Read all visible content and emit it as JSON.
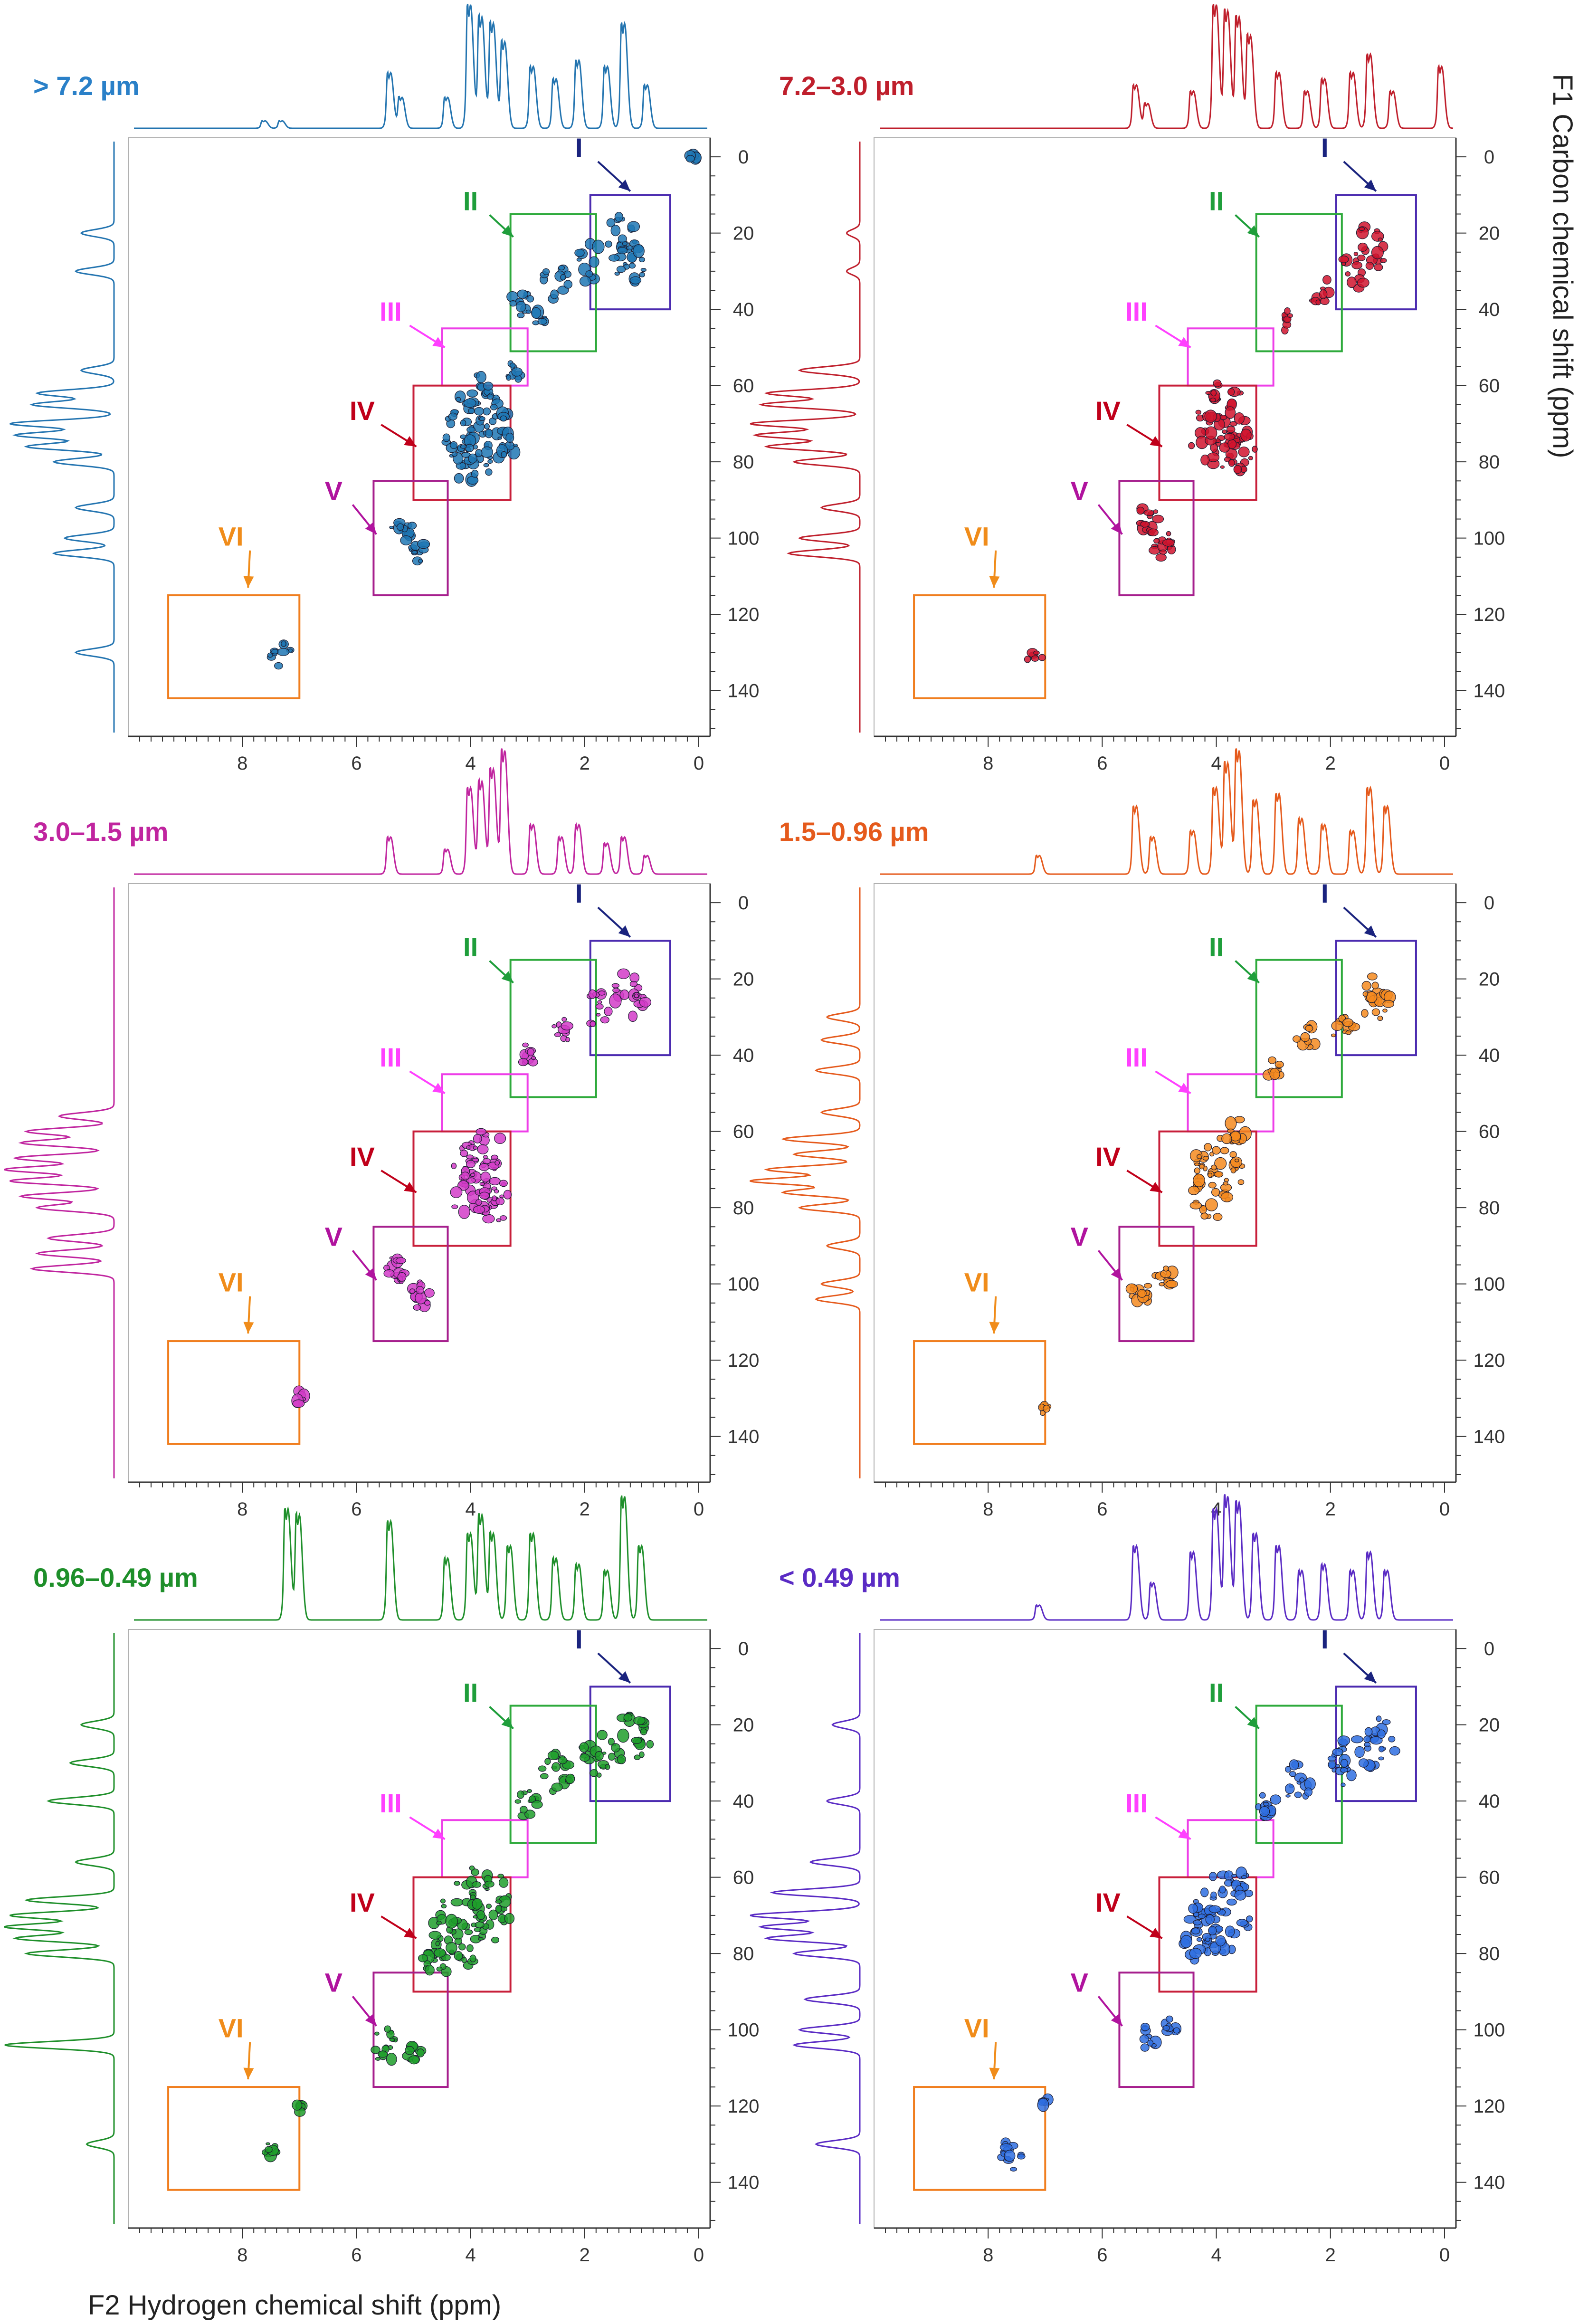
{
  "chart_data": {
    "type": "heatmap",
    "figure_layout": "3 rows x 2 columns of 2D HSQC NMR spectra with 1D projections",
    "xlabel": "F2 Hydrogen chemical shift (ppm)",
    "ylabel": "F1 Carbon chemical shift (ppm)",
    "x_axis": {
      "range": [
        10,
        -0.2
      ],
      "reversed": true,
      "ticks": [
        8,
        6,
        4,
        2,
        0
      ],
      "tick_labels": [
        "8",
        "6",
        "4",
        "2",
        "0"
      ]
    },
    "y_axis": {
      "range": [
        -5,
        152
      ],
      "reversed": true,
      "ticks": [
        0,
        20,
        40,
        60,
        80,
        100,
        120,
        140
      ],
      "tick_labels": [
        "0",
        "20",
        "40",
        "60",
        "80",
        "100",
        "120",
        "140"
      ]
    },
    "regions": [
      {
        "label": "I",
        "color": "#1a237e",
        "box_color": "#4b2bb0",
        "h": [
          0.5,
          1.9
        ],
        "c": [
          10,
          40
        ],
        "label_at": [
          2.1,
          0
        ],
        "arrow_to": [
          1.2,
          9
        ]
      },
      {
        "label": "II",
        "color": "#1f9e3b",
        "box_color": "#2eaa3c",
        "h": [
          1.8,
          3.3
        ],
        "c": [
          15,
          51
        ],
        "label_at": [
          4.0,
          14
        ],
        "arrow_to": [
          3.25,
          21
        ]
      },
      {
        "label": "III",
        "color": "#ff40ff",
        "box_color": "#ee3ee8",
        "h": [
          3.0,
          4.5
        ],
        "c": [
          45,
          60
        ],
        "label_at": [
          5.4,
          43
        ],
        "arrow_to": [
          4.45,
          50
        ]
      },
      {
        "label": "IV",
        "color": "#c0001a",
        "box_color": "#c81f3a",
        "h": [
          3.3,
          5.0
        ],
        "c": [
          60,
          90
        ],
        "label_at": [
          5.9,
          69
        ],
        "arrow_to": [
          4.95,
          76
        ]
      },
      {
        "label": "V",
        "color": "#b0139e",
        "box_color": "#a61f8d",
        "h": [
          4.4,
          5.7
        ],
        "c": [
          85,
          115
        ],
        "label_at": [
          6.4,
          90
        ],
        "arrow_to": [
          5.65,
          99
        ]
      },
      {
        "label": "VI",
        "color": "#f08c1a",
        "box_color": "#f07e1f",
        "h": [
          7.0,
          9.3
        ],
        "c": [
          115,
          142
        ],
        "label_at": [
          8.2,
          102
        ],
        "arrow_to": [
          7.9,
          113
        ]
      }
    ],
    "series": [
      {
        "name": "> 7.2 µm",
        "color": "#1f77b4",
        "projection_color": "#2374b0",
        "h_projection_peaks": [
          [
            7.6,
            0.06
          ],
          [
            7.3,
            0.06
          ],
          [
            5.4,
            0.45
          ],
          [
            5.2,
            0.25
          ],
          [
            4.4,
            0.25
          ],
          [
            4.0,
            1.0
          ],
          [
            3.8,
            0.9
          ],
          [
            3.6,
            0.85
          ],
          [
            3.4,
            0.7
          ],
          [
            2.9,
            0.5
          ],
          [
            2.5,
            0.4
          ],
          [
            2.1,
            0.55
          ],
          [
            1.6,
            0.5
          ],
          [
            1.3,
            0.85
          ],
          [
            0.9,
            0.35
          ]
        ],
        "c_projection_peaks": [
          [
            20,
            0.3
          ],
          [
            30,
            0.35
          ],
          [
            56,
            0.3
          ],
          [
            62,
            0.7
          ],
          [
            65,
            0.75
          ],
          [
            70,
            0.95
          ],
          [
            73,
            0.9
          ],
          [
            76,
            0.8
          ],
          [
            80,
            0.55
          ],
          [
            92,
            0.35
          ],
          [
            100,
            0.45
          ],
          [
            104,
            0.55
          ],
          [
            130,
            0.35
          ]
        ],
        "cross_peaks": [
          [
            1.3,
            22,
            0.34,
            6
          ],
          [
            1.2,
            28,
            0.3,
            6
          ],
          [
            2.0,
            27,
            0.3,
            4
          ],
          [
            2.5,
            33,
            0.24,
            4
          ],
          [
            3.1,
            38,
            0.18,
            4
          ],
          [
            2.8,
            43,
            0.12,
            2
          ],
          [
            3.3,
            57,
            0.15,
            3
          ],
          [
            3.8,
            66,
            0.5,
            10
          ],
          [
            3.9,
            72,
            0.55,
            12
          ],
          [
            3.6,
            75,
            0.4,
            8
          ],
          [
            4.1,
            80,
            0.3,
            6
          ],
          [
            5.2,
            98,
            0.2,
            5
          ],
          [
            4.9,
            104,
            0.15,
            4
          ],
          [
            7.35,
            130,
            0.22,
            4
          ],
          [
            0.1,
            0,
            0.1,
            2
          ]
        ]
      },
      {
        "name": "7.2–3.0 µm",
        "color": "#d0142e",
        "projection_color": "#bf1f2c",
        "h_projection_peaks": [
          [
            5.4,
            0.35
          ],
          [
            5.2,
            0.2
          ],
          [
            4.4,
            0.3
          ],
          [
            4.0,
            1.0
          ],
          [
            3.8,
            0.95
          ],
          [
            3.6,
            0.9
          ],
          [
            3.4,
            0.75
          ],
          [
            2.9,
            0.45
          ],
          [
            2.4,
            0.3
          ],
          [
            2.1,
            0.4
          ],
          [
            1.6,
            0.45
          ],
          [
            1.3,
            0.6
          ],
          [
            0.9,
            0.3
          ],
          [
            0.05,
            0.5
          ]
        ],
        "c_projection_peaks": [
          [
            20,
            0.12
          ],
          [
            30,
            0.12
          ],
          [
            56,
            0.55
          ],
          [
            62,
            0.85
          ],
          [
            65,
            0.9
          ],
          [
            70,
            1.0
          ],
          [
            73,
            0.95
          ],
          [
            76,
            0.85
          ],
          [
            80,
            0.6
          ],
          [
            92,
            0.35
          ],
          [
            100,
            0.55
          ],
          [
            104,
            0.65
          ]
        ],
        "cross_peaks": [
          [
            1.3,
            24,
            0.3,
            6
          ],
          [
            1.6,
            30,
            0.25,
            4
          ],
          [
            2.2,
            35,
            0.2,
            3
          ],
          [
            2.8,
            43,
            0.15,
            3
          ],
          [
            3.9,
            68,
            0.45,
            10
          ],
          [
            4.0,
            74,
            0.45,
            10
          ],
          [
            3.6,
            77,
            0.3,
            6
          ],
          [
            5.2,
            95,
            0.2,
            5
          ],
          [
            4.9,
            102,
            0.2,
            5
          ],
          [
            7.2,
            131,
            0.15,
            2
          ]
        ]
      },
      {
        "name": "3.0–1.5 µm",
        "color": "#d23cc8",
        "projection_color": "#c0259f",
        "h_projection_peaks": [
          [
            5.4,
            0.3
          ],
          [
            4.4,
            0.2
          ],
          [
            4.0,
            0.7
          ],
          [
            3.8,
            0.75
          ],
          [
            3.6,
            0.85
          ],
          [
            3.4,
            1.0
          ],
          [
            2.9,
            0.4
          ],
          [
            2.4,
            0.3
          ],
          [
            2.1,
            0.4
          ],
          [
            1.6,
            0.25
          ],
          [
            1.3,
            0.3
          ],
          [
            0.9,
            0.15
          ]
        ],
        "c_projection_peaks": [
          [
            56,
            0.5
          ],
          [
            60,
            0.8
          ],
          [
            63,
            0.85
          ],
          [
            67,
            0.9
          ],
          [
            70,
            1.0
          ],
          [
            73,
            0.95
          ],
          [
            77,
            0.85
          ],
          [
            80,
            0.7
          ],
          [
            88,
            0.6
          ],
          [
            92,
            0.7
          ],
          [
            96,
            0.75
          ]
        ],
        "cross_peaks": [
          [
            1.2,
            24,
            0.3,
            6
          ],
          [
            1.8,
            28,
            0.25,
            4
          ],
          [
            2.4,
            33,
            0.2,
            3
          ],
          [
            3.0,
            40,
            0.14,
            3
          ],
          [
            3.8,
            68,
            0.45,
            10
          ],
          [
            3.9,
            74,
            0.5,
            12
          ],
          [
            3.6,
            78,
            0.3,
            6
          ],
          [
            5.3,
            96,
            0.2,
            5
          ],
          [
            4.9,
            103,
            0.18,
            4
          ],
          [
            7.0,
            130,
            0.1,
            2
          ]
        ]
      },
      {
        "name": "1.5–0.96 µm",
        "color": "#f58a1f",
        "projection_color": "#e55a1c",
        "h_projection_peaks": [
          [
            7.1,
            0.15
          ],
          [
            5.4,
            0.55
          ],
          [
            5.1,
            0.3
          ],
          [
            4.4,
            0.35
          ],
          [
            4.0,
            0.7
          ],
          [
            3.8,
            0.9
          ],
          [
            3.6,
            1.0
          ],
          [
            3.3,
            0.6
          ],
          [
            2.9,
            0.65
          ],
          [
            2.5,
            0.45
          ],
          [
            2.1,
            0.4
          ],
          [
            1.6,
            0.35
          ],
          [
            1.3,
            0.7
          ],
          [
            1.0,
            0.55
          ]
        ],
        "c_projection_peaks": [
          [
            30,
            0.3
          ],
          [
            36,
            0.35
          ],
          [
            44,
            0.4
          ],
          [
            55,
            0.35
          ],
          [
            62,
            0.7
          ],
          [
            66,
            0.6
          ],
          [
            70,
            0.85
          ],
          [
            73,
            1.0
          ],
          [
            76,
            0.7
          ],
          [
            80,
            0.55
          ],
          [
            90,
            0.3
          ],
          [
            100,
            0.35
          ],
          [
            104,
            0.4
          ]
        ],
        "cross_peaks": [
          [
            1.2,
            25,
            0.3,
            6
          ],
          [
            1.8,
            32,
            0.22,
            4
          ],
          [
            2.4,
            35,
            0.2,
            3
          ],
          [
            3.0,
            44,
            0.14,
            3
          ],
          [
            3.6,
            60,
            0.2,
            4
          ],
          [
            3.9,
            70,
            0.5,
            12
          ],
          [
            4.1,
            77,
            0.35,
            6
          ],
          [
            5.3,
            102,
            0.2,
            4
          ],
          [
            4.9,
            98,
            0.16,
            3
          ],
          [
            7.0,
            133,
            0.08,
            2
          ]
        ]
      },
      {
        "name": "0.96–0.49 µm",
        "color": "#1f9e2a",
        "projection_color": "#1e8f2a",
        "h_projection_peaks": [
          [
            7.2,
            0.9
          ],
          [
            7.0,
            0.85
          ],
          [
            5.4,
            0.8
          ],
          [
            4.4,
            0.5
          ],
          [
            4.0,
            0.7
          ],
          [
            3.8,
            0.85
          ],
          [
            3.6,
            0.7
          ],
          [
            3.3,
            0.6
          ],
          [
            2.9,
            0.7
          ],
          [
            2.5,
            0.5
          ],
          [
            2.1,
            0.45
          ],
          [
            1.6,
            0.4
          ],
          [
            1.3,
            1.0
          ],
          [
            1.0,
            0.6
          ]
        ],
        "c_projection_peaks": [
          [
            20,
            0.3
          ],
          [
            30,
            0.4
          ],
          [
            40,
            0.6
          ],
          [
            56,
            0.35
          ],
          [
            66,
            0.8
          ],
          [
            70,
            0.95
          ],
          [
            73,
            1.0
          ],
          [
            76,
            0.9
          ],
          [
            80,
            0.8
          ],
          [
            104,
            1.0
          ],
          [
            130,
            0.25
          ]
        ],
        "cross_peaks": [
          [
            1.2,
            24,
            0.35,
            8
          ],
          [
            1.8,
            28,
            0.3,
            6
          ],
          [
            2.5,
            33,
            0.28,
            6
          ],
          [
            3.0,
            41,
            0.2,
            4
          ],
          [
            3.8,
            68,
            0.55,
            14
          ],
          [
            4.2,
            74,
            0.5,
            12
          ],
          [
            4.6,
            80,
            0.3,
            6
          ],
          [
            5.5,
            104,
            0.22,
            5
          ],
          [
            5.0,
            106,
            0.15,
            3
          ],
          [
            7.0,
            120,
            0.08,
            2
          ],
          [
            7.5,
            131,
            0.12,
            3
          ]
        ]
      },
      {
        "name": "< 0.49 µm",
        "color": "#2f6fe0",
        "projection_color": "#5a2bc4",
        "h_projection_peaks": [
          [
            7.1,
            0.12
          ],
          [
            5.4,
            0.6
          ],
          [
            5.1,
            0.3
          ],
          [
            4.4,
            0.55
          ],
          [
            4.0,
            0.9
          ],
          [
            3.8,
            1.0
          ],
          [
            3.6,
            0.95
          ],
          [
            3.3,
            0.7
          ],
          [
            2.9,
            0.6
          ],
          [
            2.5,
            0.4
          ],
          [
            2.1,
            0.45
          ],
          [
            1.6,
            0.4
          ],
          [
            1.3,
            0.55
          ],
          [
            1.0,
            0.4
          ]
        ],
        "c_projection_peaks": [
          [
            20,
            0.25
          ],
          [
            40,
            0.3
          ],
          [
            56,
            0.45
          ],
          [
            64,
            0.8
          ],
          [
            70,
            1.0
          ],
          [
            73,
            0.9
          ],
          [
            76,
            0.85
          ],
          [
            80,
            0.6
          ],
          [
            92,
            0.5
          ],
          [
            100,
            0.55
          ],
          [
            104,
            0.6
          ],
          [
            130,
            0.4
          ]
        ],
        "cross_peaks": [
          [
            1.2,
            25,
            0.35,
            8
          ],
          [
            1.8,
            30,
            0.3,
            6
          ],
          [
            2.6,
            35,
            0.25,
            5
          ],
          [
            3.1,
            41,
            0.18,
            4
          ],
          [
            3.9,
            70,
            0.55,
            14
          ],
          [
            4.2,
            76,
            0.45,
            10
          ],
          [
            3.6,
            62,
            0.2,
            4
          ],
          [
            5.2,
            102,
            0.15,
            3
          ],
          [
            4.8,
            99,
            0.12,
            3
          ],
          [
            7.6,
            133,
            0.2,
            5
          ],
          [
            7.0,
            119,
            0.08,
            2
          ]
        ]
      }
    ]
  }
}
